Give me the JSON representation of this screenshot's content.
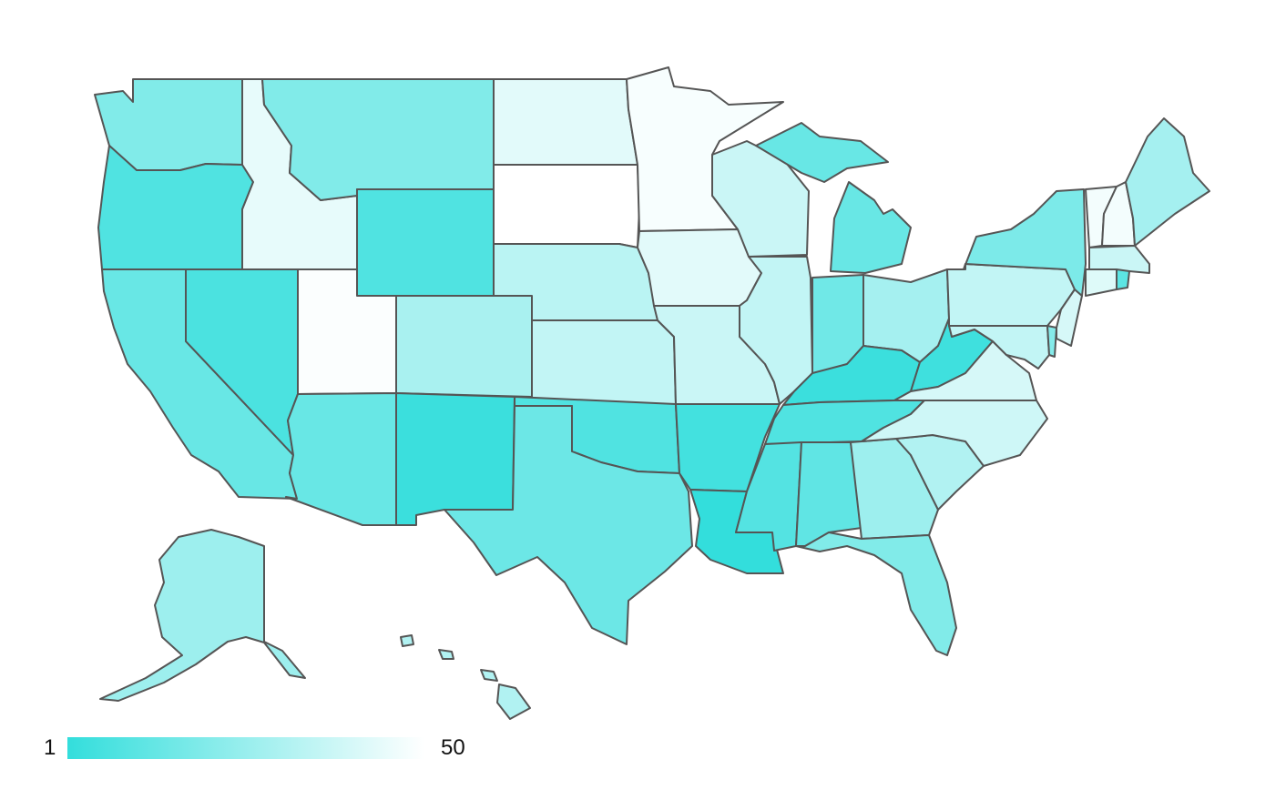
{
  "map": {
    "type": "choropleth",
    "region": "United States",
    "color_low_rank": "#33dedc",
    "color_high_rank": "#ffffff",
    "border_color": "#555555"
  },
  "legend": {
    "min_label": "1",
    "max_label": "50",
    "gradient_start": "#33dedc",
    "gradient_end": "#ffffff"
  },
  "states": [
    {
      "id": "WA",
      "shade": 0.62
    },
    {
      "id": "OR",
      "shade": 0.86
    },
    {
      "id": "CA",
      "shade": 0.74
    },
    {
      "id": "NV",
      "shade": 0.88
    },
    {
      "id": "ID",
      "shade": 0.12
    },
    {
      "id": "MT",
      "shade": 0.62
    },
    {
      "id": "WY",
      "shade": 0.86
    },
    {
      "id": "UT",
      "shade": 0.02
    },
    {
      "id": "AZ",
      "shade": 0.74
    },
    {
      "id": "CO",
      "shade": 0.42
    },
    {
      "id": "NM",
      "shade": 0.96
    },
    {
      "id": "ND",
      "shade": 0.14
    },
    {
      "id": "SD",
      "shade": 0.0
    },
    {
      "id": "NE",
      "shade": 0.34
    },
    {
      "id": "KS",
      "shade": 0.3
    },
    {
      "id": "OK",
      "shade": 0.86
    },
    {
      "id": "TX",
      "shade": 0.72
    },
    {
      "id": "MN",
      "shade": 0.04
    },
    {
      "id": "IA",
      "shade": 0.14
    },
    {
      "id": "MO",
      "shade": 0.26
    },
    {
      "id": "AR",
      "shade": 0.92
    },
    {
      "id": "LA",
      "shade": 1.0
    },
    {
      "id": "WI",
      "shade": 0.26
    },
    {
      "id": "IL",
      "shade": 0.3
    },
    {
      "id": "MI",
      "shade": 0.74
    },
    {
      "id": "IN",
      "shade": 0.7
    },
    {
      "id": "OH",
      "shade": 0.44
    },
    {
      "id": "KY",
      "shade": 0.96
    },
    {
      "id": "TN",
      "shade": 0.86
    },
    {
      "id": "MS",
      "shade": 0.84
    },
    {
      "id": "AL",
      "shade": 0.78
    },
    {
      "id": "GA",
      "shade": 0.48
    },
    {
      "id": "FL",
      "shade": 0.62
    },
    {
      "id": "SC",
      "shade": 0.38
    },
    {
      "id": "NC",
      "shade": 0.24
    },
    {
      "id": "VA",
      "shade": 0.2
    },
    {
      "id": "WV",
      "shade": 0.94
    },
    {
      "id": "PA",
      "shade": 0.3
    },
    {
      "id": "NY",
      "shade": 0.64
    },
    {
      "id": "VT",
      "shade": 0.06
    },
    {
      "id": "NH",
      "shade": 0.06
    },
    {
      "id": "ME",
      "shade": 0.44
    },
    {
      "id": "MA",
      "shade": 0.26
    },
    {
      "id": "CT",
      "shade": 0.16
    },
    {
      "id": "RI",
      "shade": 0.8
    },
    {
      "id": "NJ",
      "shade": 0.2
    },
    {
      "id": "DE",
      "shade": 0.6
    },
    {
      "id": "MD",
      "shade": 0.3
    },
    {
      "id": "AK",
      "shade": 0.48
    },
    {
      "id": "HI",
      "shade": 0.38
    }
  ]
}
